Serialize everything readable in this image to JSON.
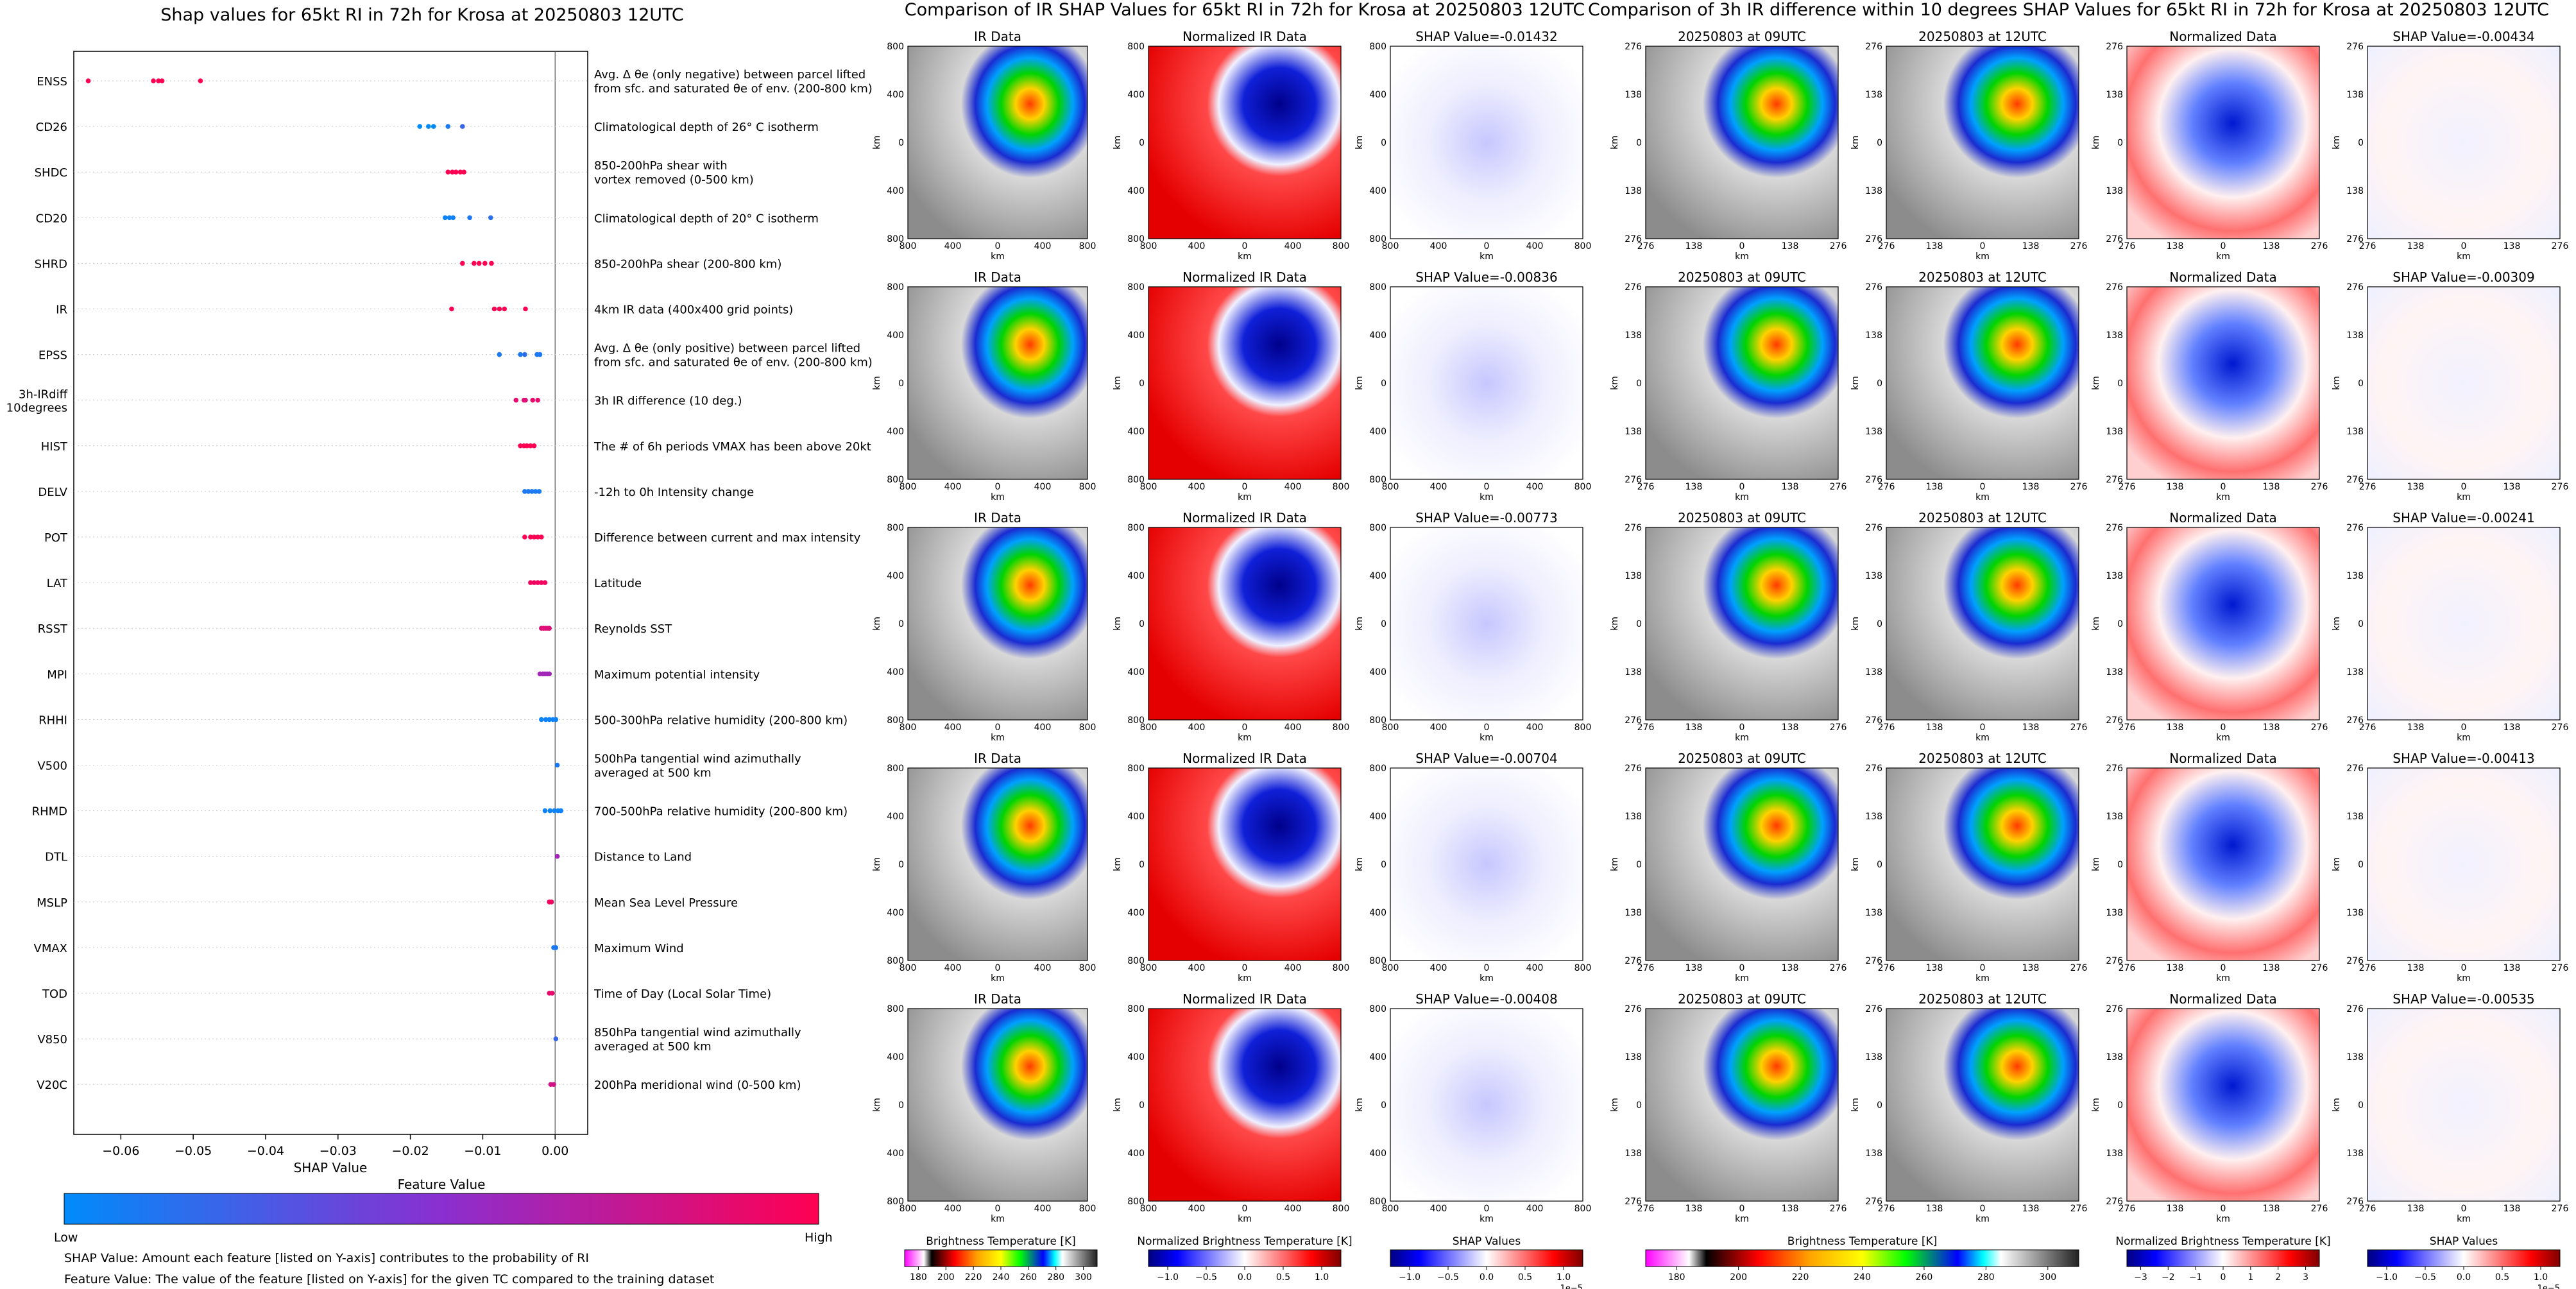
{
  "shap_panel": {
    "title": "Shap values for 65kt RI in 72h for Krosa at 20250803 12UTC",
    "xlabel": "SHAP Value",
    "colorbar_title": "Feature Value",
    "colorbar_low": "Low",
    "colorbar_high": "High",
    "footnote_1": "SHAP Value: Amount each feature [listed on Y-axis] contributes to the probability of RI",
    "footnote_2": "Feature Value: The value of the feature [listed on Y-axis] for the given TC compared to the training dataset"
  },
  "chart_data": [
    {
      "type": "scatter",
      "title": "Shap values for 65kt RI in 72h for Krosa at 20250803 12UTC",
      "xlabel": "SHAP Value",
      "ylabel": "",
      "xlim": [
        -0.0665,
        0.0045
      ],
      "xticks": [
        -0.06,
        -0.05,
        -0.04,
        -0.03,
        -0.02,
        -0.01,
        0.0
      ],
      "xtick_labels": [
        "−0.06",
        "−0.05",
        "−0.04",
        "−0.03",
        "−0.02",
        "−0.01",
        "0.00"
      ],
      "colormap": [
        "#008bfb",
        "#ff0052"
      ],
      "features": [
        {
          "code": "ENSS",
          "line1": "Avg. Δ θe (only negative) between parcel lifted",
          "line2": "from sfc. and saturated θe of env. (200-800 km)",
          "points": [
            [
              -0.0645,
              1
            ],
            [
              -0.0555,
              1
            ],
            [
              -0.0548,
              1
            ],
            [
              -0.0543,
              1
            ],
            [
              -0.049,
              1
            ]
          ]
        },
        {
          "code": "CD26",
          "line1": "Climatological depth of 26° C isotherm",
          "line2": "",
          "points": [
            [
              -0.0187,
              0
            ],
            [
              -0.0175,
              0
            ],
            [
              -0.0168,
              0
            ],
            [
              -0.0148,
              0.1
            ],
            [
              -0.0128,
              0.2
            ]
          ]
        },
        {
          "code": "SHDC",
          "line1": "850-200hPa shear with",
          "line2": "vortex removed (0-500 km)",
          "points": [
            [
              -0.0148,
              1
            ],
            [
              -0.0142,
              1
            ],
            [
              -0.0137,
              1
            ],
            [
              -0.0131,
              1
            ],
            [
              -0.0126,
              1
            ]
          ]
        },
        {
          "code": "CD20",
          "line1": "Climatological depth of 20° C isotherm",
          "line2": "",
          "points": [
            [
              -0.0152,
              0.05
            ],
            [
              -0.0146,
              0.05
            ],
            [
              -0.0141,
              0.05
            ],
            [
              -0.0118,
              0.1
            ],
            [
              -0.0089,
              0.15
            ]
          ]
        },
        {
          "code": "SHRD",
          "line1": "850-200hPa shear (200-800 km)",
          "line2": "",
          "points": [
            [
              -0.0128,
              1
            ],
            [
              -0.0112,
              1
            ],
            [
              -0.0105,
              1
            ],
            [
              -0.0097,
              1
            ],
            [
              -0.0088,
              1
            ]
          ]
        },
        {
          "code": "IR",
          "line1": "4km IR data (400x400 grid points)",
          "line2": "",
          "points": [
            [
              -0.0143,
              1
            ],
            [
              -0.0084,
              1
            ],
            [
              -0.0077,
              1
            ],
            [
              -0.007,
              1
            ],
            [
              -0.0041,
              1
            ]
          ]
        },
        {
          "code": "EPSS",
          "line1": "Avg. Δ θe (only positive) between parcel lifted",
          "line2": "from sfc. and saturated θe of env. (200-800 km)",
          "points": [
            [
              -0.0077,
              0.1
            ],
            [
              -0.0048,
              0.1
            ],
            [
              -0.0042,
              0.15
            ],
            [
              -0.0025,
              0.1
            ],
            [
              -0.0021,
              0.1
            ]
          ]
        },
        {
          "code": "3h-IRdiff\n10degrees",
          "line1": "3h IR difference (10 deg.)",
          "line2": "",
          "points": [
            [
              -0.0054,
              0.9
            ],
            [
              -0.0043,
              0.9
            ],
            [
              -0.0041,
              0.85
            ],
            [
              -0.0031,
              0.9
            ],
            [
              -0.0024,
              0.9
            ]
          ]
        },
        {
          "code": "HIST",
          "line1": "The # of 6h periods VMAX has been above 20kt",
          "line2": "",
          "points": [
            [
              -0.0048,
              1
            ],
            [
              -0.0043,
              1
            ],
            [
              -0.0039,
              1
            ],
            [
              -0.0034,
              1
            ],
            [
              -0.0029,
              1
            ]
          ]
        },
        {
          "code": "DELV",
          "line1": "-12h to 0h Intensity change",
          "line2": "",
          "points": [
            [
              -0.0042,
              0.1
            ],
            [
              -0.0037,
              0.1
            ],
            [
              -0.0032,
              0.1
            ],
            [
              -0.0027,
              0.1
            ],
            [
              -0.0022,
              0.1
            ]
          ]
        },
        {
          "code": "POT",
          "line1": "Difference between current and max intensity",
          "line2": "",
          "points": [
            [
              -0.0042,
              1
            ],
            [
              -0.0034,
              1
            ],
            [
              -0.0029,
              1
            ],
            [
              -0.0024,
              1
            ],
            [
              -0.0019,
              1
            ]
          ]
        },
        {
          "code": "LAT",
          "line1": "Latitude",
          "line2": "",
          "points": [
            [
              -0.0034,
              0.95
            ],
            [
              -0.0029,
              0.95
            ],
            [
              -0.0024,
              0.95
            ],
            [
              -0.0019,
              0.95
            ],
            [
              -0.0014,
              0.95
            ]
          ]
        },
        {
          "code": "RSST",
          "line1": "Reynolds SST",
          "line2": "",
          "points": [
            [
              -0.0019,
              0.85
            ],
            [
              -0.0016,
              0.85
            ],
            [
              -0.0013,
              0.85
            ],
            [
              -0.001,
              0.85
            ],
            [
              -0.0008,
              0.85
            ]
          ]
        },
        {
          "code": "MPI",
          "line1": "Maximum potential intensity",
          "line2": "",
          "points": [
            [
              -0.0021,
              0.6
            ],
            [
              -0.0017,
              0.6
            ],
            [
              -0.0014,
              0.6
            ],
            [
              -0.0011,
              0.6
            ],
            [
              -0.0008,
              0.6
            ]
          ]
        },
        {
          "code": "RHHI",
          "line1": "500-300hPa relative humidity (200-800 km)",
          "line2": "",
          "points": [
            [
              -0.0019,
              0.05
            ],
            [
              -0.0013,
              0.05
            ],
            [
              -0.0008,
              0.05
            ],
            [
              -0.0003,
              0.05
            ],
            [
              0.0001,
              0.05
            ]
          ]
        },
        {
          "code": "V500",
          "line1": "500hPa tangential wind azimuthally",
          "line2": "averaged at 500 km",
          "points": [
            [
              0.0003,
              0.1
            ]
          ]
        },
        {
          "code": "RHMD",
          "line1": "700-500hPa relative humidity (200-800 km)",
          "line2": "",
          "points": [
            [
              -0.0014,
              0.05
            ],
            [
              -0.0007,
              0.05
            ],
            [
              -0.0001,
              0.05
            ],
            [
              0.0004,
              0.05
            ],
            [
              0.0008,
              0.05
            ]
          ]
        },
        {
          "code": "DTL",
          "line1": "Distance to Land",
          "line2": "",
          "points": [
            [
              0.0003,
              0.6
            ]
          ]
        },
        {
          "code": "MSLP",
          "line1": "Mean Sea Level Pressure",
          "line2": "",
          "points": [
            [
              -0.0008,
              0.95
            ],
            [
              -0.0005,
              0.95
            ]
          ]
        },
        {
          "code": "VMAX",
          "line1": "Maximum Wind",
          "line2": "",
          "points": [
            [
              -0.0002,
              0.1
            ],
            [
              0.0001,
              0.1
            ]
          ]
        },
        {
          "code": "TOD",
          "line1": "Time of Day (Local Solar Time)",
          "line2": "",
          "points": [
            [
              -0.0008,
              0.9
            ],
            [
              -0.0004,
              0.9
            ]
          ]
        },
        {
          "code": "V850",
          "line1": "850hPa tangential wind azimuthally",
          "line2": "averaged at 500 km",
          "points": [
            [
              0.0001,
              0.2
            ]
          ]
        },
        {
          "code": "V20C",
          "line1": "200hPa meridional wind (0-500 km)",
          "line2": "",
          "points": [
            [
              -0.0006,
              0.8
            ],
            [
              -0.0002,
              0.8
            ]
          ]
        }
      ]
    }
  ],
  "ir_section": {
    "title": "Comparison of IR SHAP Values for 65kt RI in 72h for Krosa at 20250803 12UTC",
    "col_titles": [
      "IR Data",
      "Normalized IR Data"
    ],
    "shap_titles": [
      "SHAP Value=-0.01432",
      "SHAP Value=-0.00836",
      "SHAP Value=-0.00773",
      "SHAP Value=-0.00704",
      "SHAP Value=-0.00408"
    ],
    "ticks": [
      "800",
      "400",
      "0",
      "400",
      "800"
    ],
    "axis_label": "km",
    "colorbars": [
      {
        "label": "Brightness Temperature [K]",
        "ticks": [
          "180",
          "200",
          "220",
          "240",
          "260",
          "280",
          "300"
        ],
        "offset": ""
      },
      {
        "label": "Normalized Brightness Temperature [K]",
        "ticks": [
          "−1.0",
          "−0.5",
          "0.0",
          "0.5",
          "1.0"
        ],
        "offset": ""
      },
      {
        "label": "SHAP Values",
        "ticks": [
          "−1.0",
          "−0.5",
          "0.0",
          "0.5",
          "1.0"
        ],
        "offset": "1e−5"
      }
    ]
  },
  "diff_section": {
    "title": "Comparison of 3h IR difference within 10 degrees SHAP Values for 65kt RI in 72h for Krosa at 20250803 12UTC",
    "col_titles": [
      "20250803 at 09UTC",
      "20250803 at 12UTC",
      "Normalized Data"
    ],
    "shap_titles": [
      "SHAP Value=-0.00434",
      "SHAP Value=-0.00309",
      "SHAP Value=-0.00241",
      "SHAP Value=-0.00413",
      "SHAP Value=-0.00535"
    ],
    "ticks": [
      "276",
      "138",
      "0",
      "138",
      "276"
    ],
    "axis_label": "km",
    "colorbars": [
      {
        "label": "Brightness Temperature [K]",
        "ticks": [
          "180",
          "200",
          "220",
          "240",
          "260",
          "280",
          "300"
        ],
        "offset": ""
      },
      {
        "label": "Normalized Brightness Temperature [K]",
        "ticks": [
          "−3",
          "−2",
          "−1",
          "0",
          "1",
          "2",
          "3"
        ],
        "offset": ""
      },
      {
        "label": "SHAP Values",
        "ticks": [
          "−1.0",
          "−0.5",
          "0.0",
          "0.5",
          "1.0"
        ],
        "offset": "1e−5"
      }
    ]
  }
}
